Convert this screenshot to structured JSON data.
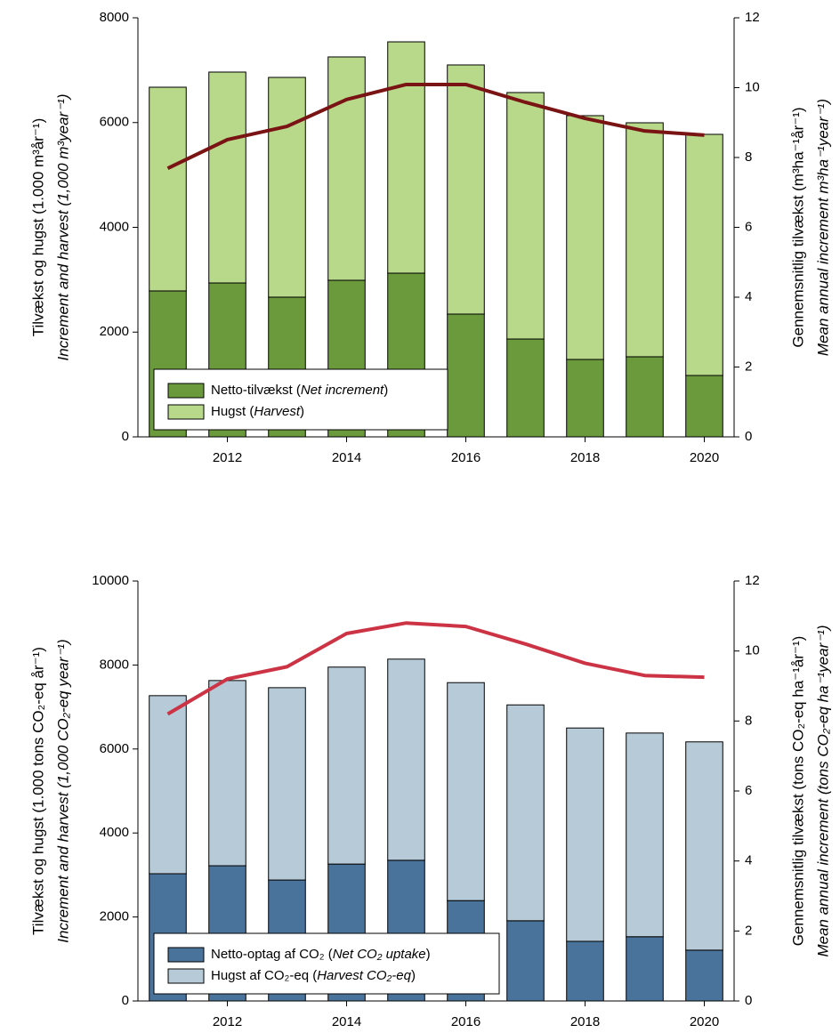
{
  "chart_data": [
    {
      "type": "bar",
      "stacked": true,
      "legend": "lower left",
      "x": [
        2011,
        2012,
        2013,
        2014,
        2015,
        2016,
        2017,
        2018,
        2019,
        2020
      ],
      "xlim": [
        2010.5,
        2020.5
      ],
      "xticks": [
        2012,
        2014,
        2016,
        2018,
        2020
      ],
      "ylim": [
        0,
        8000
      ],
      "yticks": [
        0,
        2000,
        4000,
        6000,
        8000
      ],
      "y2lim": [
        0,
        12
      ],
      "y2ticks": [
        0,
        2,
        4,
        6,
        8,
        10,
        12
      ],
      "ylabel": [
        "Tilvækst og hugst (1.000 m³år⁻¹)",
        "Increment and harvest (1,000 m³year⁻¹)"
      ],
      "y2label": [
        "Gennemsnitlig tilvækst (m³ha⁻¹år⁻¹)",
        "Mean annual increment m³ha⁻¹year⁻¹)"
      ],
      "series": [
        {
          "name": "Netto-tilvækst (Net increment)",
          "type": "bar",
          "color": "#6a9a3c",
          "values": [
            2786,
            2938,
            2667,
            2989,
            3125,
            2344,
            1868,
            1478,
            1529,
            1172
          ]
        },
        {
          "name": "Hugst (Harvest)",
          "type": "bar",
          "color": "#b8d88a",
          "values": [
            3889,
            4026,
            4195,
            4264,
            4416,
            4756,
            4705,
            4654,
            4467,
            4603
          ]
        },
        {
          "type": "line",
          "axis": "y2",
          "color": "#7a1414",
          "values": [
            7.69,
            8.51,
            8.89,
            9.66,
            10.09,
            10.09,
            9.58,
            9.12,
            8.76,
            8.64
          ]
        }
      ]
    },
    {
      "type": "bar",
      "stacked": true,
      "legend": "lower left",
      "x": [
        2011,
        2012,
        2013,
        2014,
        2015,
        2016,
        2017,
        2018,
        2019,
        2020
      ],
      "xlim": [
        2010.5,
        2020.5
      ],
      "xticks": [
        2012,
        2014,
        2016,
        2018,
        2020
      ],
      "ylim": [
        0,
        10000
      ],
      "yticks": [
        0,
        2000,
        4000,
        6000,
        8000,
        10000
      ],
      "y2lim": [
        0,
        12
      ],
      "y2ticks": [
        0,
        2,
        4,
        6,
        8,
        10,
        12
      ],
      "ylabel": [
        "Tilvækst og hugst (1.000 tons CO₂-eq år⁻¹)",
        "Increment and harvest (1,000 CO₂-eq year⁻¹)"
      ],
      "y2label": [
        "Gennemsnitlig tilvækst (tons CO₂-eq ha⁻¹år⁻¹)",
        "Mean annual increment (tons CO₂-eq ha⁻¹year⁻¹)"
      ],
      "series": [
        {
          "name": "Netto-optag af CO₂ (Net CO₂ uptake)",
          "type": "bar",
          "color": "#4a739b",
          "values": [
            3030,
            3220,
            2880,
            3260,
            3350,
            2390,
            1910,
            1420,
            1530,
            1210
          ]
        },
        {
          "name": "Hugst af CO₂-eq (Harvest CO₂-eq)",
          "type": "bar",
          "color": "#b6cad8",
          "values": [
            4240,
            4410,
            4580,
            4690,
            4790,
            5190,
            5140,
            5080,
            4850,
            4960
          ]
        },
        {
          "type": "line",
          "axis": "y2",
          "color": "#cc3344",
          "values": [
            8.2,
            9.2,
            9.55,
            10.5,
            10.8,
            10.7,
            10.2,
            9.65,
            9.3,
            9.25
          ]
        }
      ]
    }
  ]
}
